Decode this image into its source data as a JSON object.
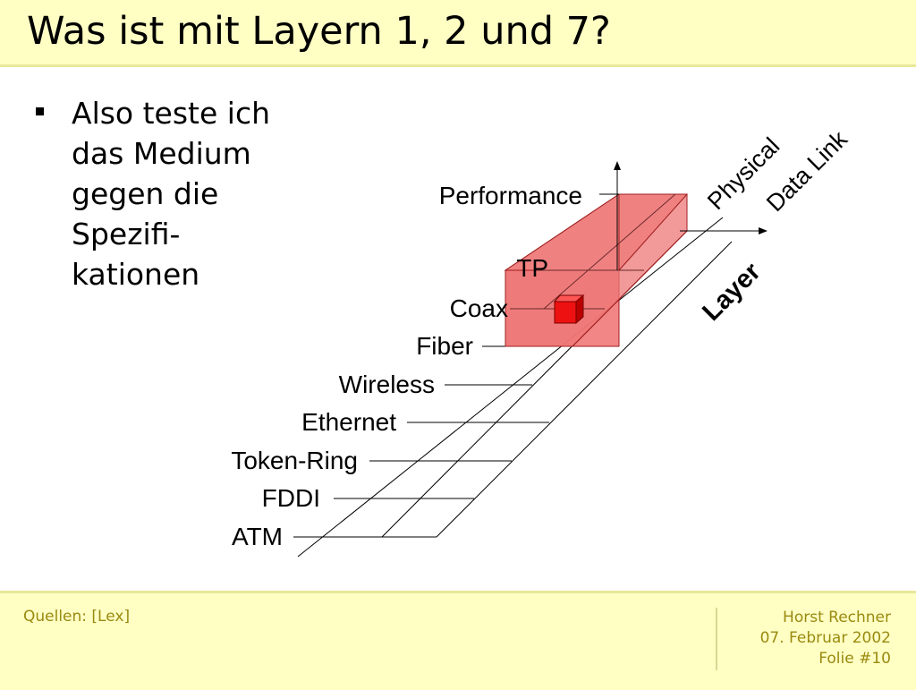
{
  "slide": {
    "title": "Was ist mit Layern 1, 2 und 7?",
    "bullets": [
      {
        "lines": [
          "Also teste ich",
          "das Medium",
          "gegen die",
          "Spezifi-",
          "kationen"
        ]
      }
    ]
  },
  "diagram": {
    "vertical_axis_label": "Performance",
    "layer_axis_label": "Layer",
    "layers": [
      "Physical",
      "Data Link"
    ],
    "media": [
      "TP",
      "Coax",
      "Fiber",
      "Wireless",
      "Ethernet",
      "Token-Ring",
      "FDDI",
      "ATM"
    ],
    "highlight_color": "#f06060",
    "cube_color": "#ee1111"
  },
  "footer": {
    "sources": "Quellen: [Lex]",
    "author": "Horst Rechner",
    "date": "07. Februar 2002",
    "slide_number": "Folie #10"
  }
}
